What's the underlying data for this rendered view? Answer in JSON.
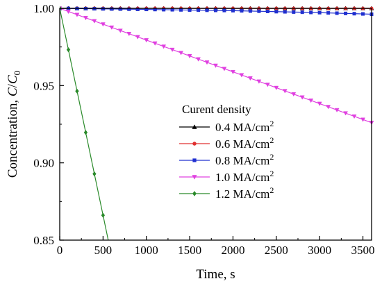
{
  "chart_data": {
    "type": "line",
    "xlabel": "Time, s",
    "ylabel_text": "Concentration, ",
    "ylabel_var": "C",
    "ylabel_slash": "/",
    "ylabel_var0": "C",
    "ylabel_sub": "0",
    "xlim": [
      0,
      3600
    ],
    "ylim": [
      0.85,
      1.0
    ],
    "xticks": [
      0,
      500,
      1000,
      1500,
      2000,
      2500,
      3000,
      3500
    ],
    "xtick_labels": [
      "0",
      "500",
      "1000",
      "1500",
      "2000",
      "2500",
      "3000",
      "3500"
    ],
    "yticks": [
      0.85,
      0.9,
      0.95,
      1.0
    ],
    "ytick_labels": [
      "0.85",
      "0.90",
      "0.95",
      "1.00"
    ],
    "legend_title": "Curent density",
    "legend_placement": "center-right",
    "series": [
      {
        "name": "0.4 MA/cm",
        "sup": "2",
        "color": "#000000",
        "marker": "triangle-up",
        "x": [
          0,
          3600
        ],
        "y": [
          1.0,
          1.0
        ]
      },
      {
        "name": "0.6 MA/cm",
        "sup": "2",
        "color": "#e03030",
        "marker": "circle",
        "x": [
          0,
          3600
        ],
        "y": [
          1.0,
          0.9999
        ]
      },
      {
        "name": "0.8 MA/cm",
        "sup": "2",
        "color": "#2030d0",
        "marker": "square",
        "x": [
          0,
          1000,
          2000,
          3000,
          3600
        ],
        "y": [
          1.0,
          0.9993,
          0.9985,
          0.9972,
          0.9962
        ]
      },
      {
        "name": "1.0 MA/cm",
        "sup": "2",
        "color": "#e040e0",
        "marker": "triangle-down",
        "x": [
          0,
          3600
        ],
        "y": [
          1.0,
          0.926
        ]
      },
      {
        "name": "1.2 MA/cm",
        "sup": "2",
        "color": "#2a8a2a",
        "marker": "diamond",
        "x": [
          0,
          560
        ],
        "y": [
          1.0,
          0.85
        ]
      }
    ]
  }
}
